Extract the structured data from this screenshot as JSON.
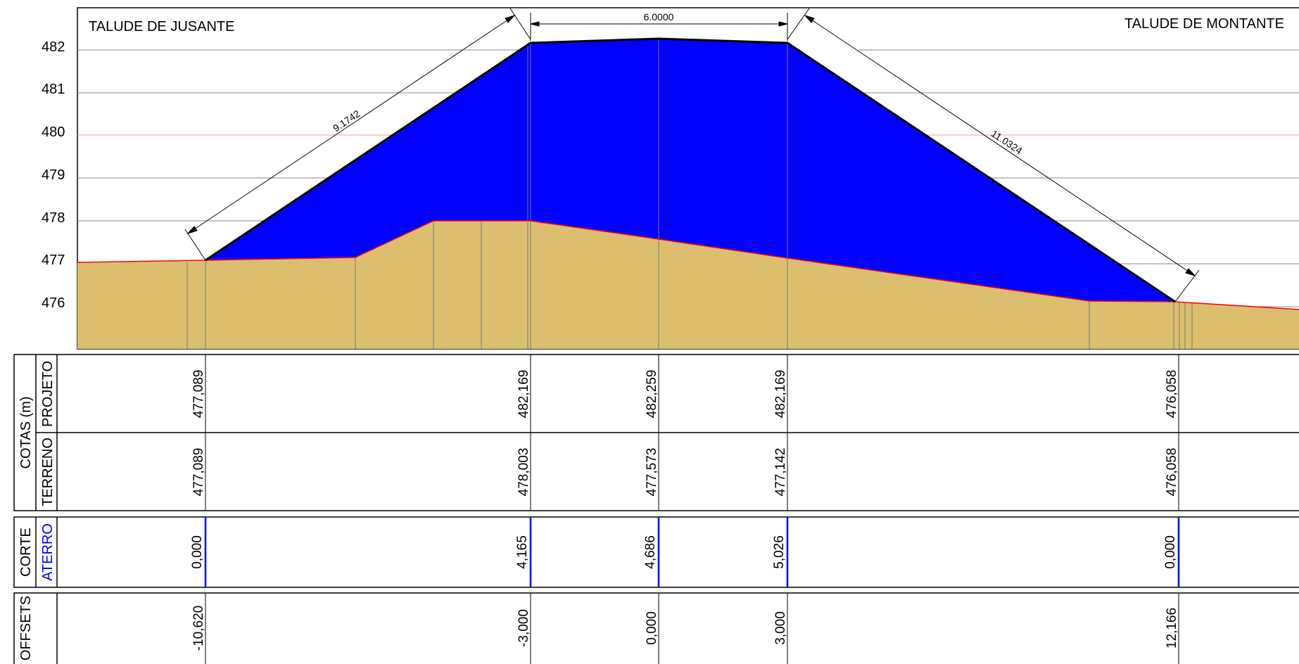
{
  "labels": {
    "left_slope": "TALUDE DE JUSANTE",
    "right_slope": "TALUDE DE MONTANTE"
  },
  "dimensions": {
    "crest_width": "6.0000",
    "left_slope_length": "9.1742",
    "right_slope_length": "11.0324"
  },
  "table": {
    "group_cotas": "COTAS (m)",
    "row_projeto": "PROJETO",
    "row_terreno": "TERRENO",
    "group_corte": "CORTE",
    "row_aterro": "ATERRO",
    "group_offsets": "OFFSETS"
  },
  "colors": {
    "fill_embankment": "#0000ff",
    "terrain": "#dbbf6e",
    "terrain_line": "#ff0000",
    "reference_line": "#ff9999",
    "aterro_text": "#0000ff"
  },
  "chart_data": {
    "type": "cross-section",
    "yticks": [
      "482",
      "481",
      "480",
      "479",
      "478",
      "477",
      "476"
    ],
    "stations": [
      {
        "offset": "-10,620",
        "projeto": "477,089",
        "terreno": "477,089",
        "aterro": "0,000"
      },
      {
        "offset": "-3,000",
        "projeto": "482,169",
        "terreno": "478,003",
        "aterro": "4,165"
      },
      {
        "offset": "0,000",
        "projeto": "482,259",
        "terreno": "477,573",
        "aterro": "4,686"
      },
      {
        "offset": "3,000",
        "projeto": "482,169",
        "terreno": "477,142",
        "aterro": "5,026"
      },
      {
        "offset": "12,166",
        "projeto": "476,058",
        "terreno": "476,058",
        "aterro": "0,000"
      }
    ]
  }
}
